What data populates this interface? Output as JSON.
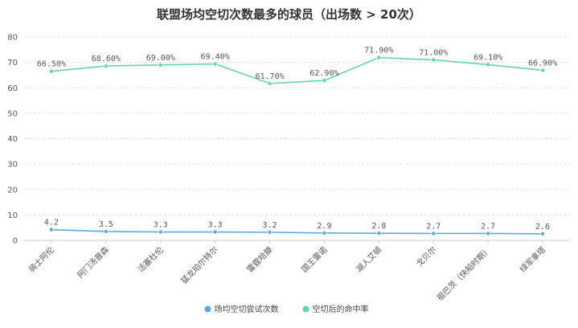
{
  "chart_data": {
    "type": "line",
    "title": "联盟场均空切次数最多的球员（出场数 > 20次）",
    "xlabel": "",
    "ylabel": "",
    "categories": [
      "骑士阿伦",
      "阿门汤普森",
      "活塞杜伦",
      "猛龙珀尔特尔",
      "雷霆哈滕",
      "国王雷诺",
      "湖人艾顿",
      "戈贝尔",
      "祖巴茨（快船时期）",
      "绿军拿塔"
    ],
    "series": [
      {
        "name": "场均空切尝试次数",
        "color": "#5aa9e6",
        "values": [
          4.2,
          3.5,
          3.3,
          3.3,
          3.2,
          2.9,
          2.8,
          2.7,
          2.7,
          2.6
        ],
        "labels": [
          "4.2",
          "3.5",
          "3.3",
          "3.3",
          "3.2",
          "2.9",
          "2.8",
          "2.7",
          "2.7",
          "2.6"
        ]
      },
      {
        "name": "空切后的命中率",
        "color": "#5fd6a8",
        "values": [
          66.5,
          68.6,
          69.0,
          69.4,
          61.7,
          62.9,
          71.9,
          71.0,
          69.1,
          66.9
        ],
        "labels": [
          "66.50%",
          "68.60%",
          "69.00%",
          "69.40%",
          "61.70%",
          "62.90%",
          "71.90%",
          "71.00%",
          "69.10%",
          "66.90%"
        ]
      }
    ],
    "ylim": [
      0,
      80
    ],
    "yticks": [
      "0",
      "10",
      "20",
      "30",
      "40",
      "50",
      "60",
      "70",
      "80"
    ],
    "grid": true,
    "legend": "bottom-center"
  }
}
